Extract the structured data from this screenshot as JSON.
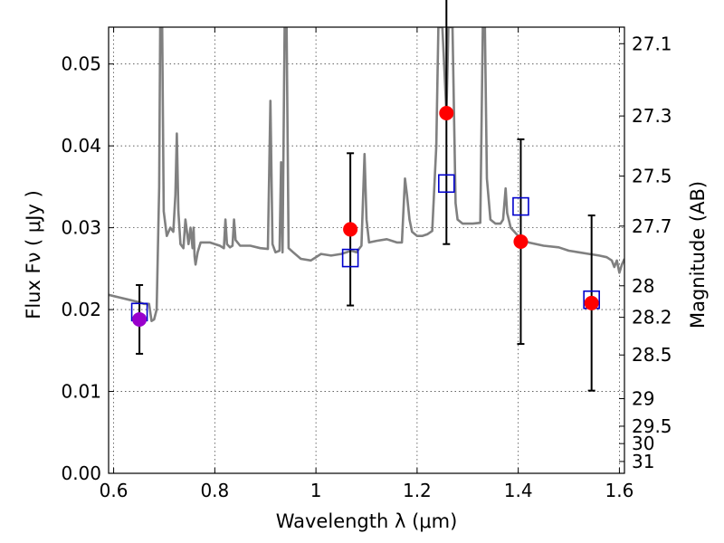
{
  "chart_data": {
    "type": "line",
    "xlabel": "Wavelength  λ (μm)",
    "ylabel": "Flux  Fν  ( μJy )",
    "y2label": "Magnitude (AB)",
    "xlim": [
      0.59,
      1.61
    ],
    "ylim": [
      0.0,
      0.0545
    ],
    "grid": true,
    "x_ticks": [
      {
        "value": 0.6,
        "label": "0.6"
      },
      {
        "value": 0.8,
        "label": "0.8"
      },
      {
        "value": 1.0,
        "label": "1"
      },
      {
        "value": 1.2,
        "label": "1.2"
      },
      {
        "value": 1.4,
        "label": "1.4"
      },
      {
        "value": 1.6,
        "label": "1.6"
      }
    ],
    "y_ticks": [
      {
        "value": 0.0,
        "label": "0.00"
      },
      {
        "value": 0.01,
        "label": "0.01"
      },
      {
        "value": 0.02,
        "label": "0.02"
      },
      {
        "value": 0.03,
        "label": "0.03"
      },
      {
        "value": 0.04,
        "label": "0.04"
      },
      {
        "value": 0.05,
        "label": "0.05"
      }
    ],
    "y2_ticks": [
      {
        "value": 27.1,
        "label": "27.1"
      },
      {
        "value": 27.3,
        "label": "27.3"
      },
      {
        "value": 27.5,
        "label": "27.5"
      },
      {
        "value": 27.7,
        "label": "27.7"
      },
      {
        "value": 28.0,
        "label": "28"
      },
      {
        "value": 28.2,
        "label": "28.2"
      },
      {
        "value": 28.5,
        "label": "28.5"
      },
      {
        "value": 29.0,
        "label": "29"
      },
      {
        "value": 29.5,
        "label": "29.5"
      },
      {
        "value": 30.0,
        "label": "30"
      },
      {
        "value": 31.0,
        "label": "31"
      }
    ],
    "spectrum": {
      "color": "#808080",
      "points": [
        [
          0.59,
          0.0218
        ],
        [
          0.61,
          0.0215
        ],
        [
          0.63,
          0.0212
        ],
        [
          0.65,
          0.0209
        ],
        [
          0.66,
          0.0207
        ],
        [
          0.67,
          0.0207
        ],
        [
          0.675,
          0.0186
        ],
        [
          0.68,
          0.0188
        ],
        [
          0.685,
          0.02
        ],
        [
          0.69,
          0.035
        ],
        [
          0.692,
          0.0545
        ],
        [
          0.696,
          0.0545
        ],
        [
          0.699,
          0.032
        ],
        [
          0.705,
          0.029
        ],
        [
          0.712,
          0.03
        ],
        [
          0.718,
          0.0295
        ],
        [
          0.722,
          0.034
        ],
        [
          0.725,
          0.0415
        ],
        [
          0.728,
          0.032
        ],
        [
          0.732,
          0.028
        ],
        [
          0.738,
          0.0275
        ],
        [
          0.742,
          0.031
        ],
        [
          0.745,
          0.0295
        ],
        [
          0.748,
          0.028
        ],
        [
          0.752,
          0.03
        ],
        [
          0.756,
          0.0275
        ],
        [
          0.758,
          0.03
        ],
        [
          0.76,
          0.0265
        ],
        [
          0.762,
          0.0255
        ],
        [
          0.766,
          0.027
        ],
        [
          0.772,
          0.0282
        ],
        [
          0.79,
          0.0282
        ],
        [
          0.81,
          0.0278
        ],
        [
          0.818,
          0.0275
        ],
        [
          0.821,
          0.031
        ],
        [
          0.824,
          0.028
        ],
        [
          0.83,
          0.0276
        ],
        [
          0.835,
          0.0278
        ],
        [
          0.838,
          0.031
        ],
        [
          0.841,
          0.0285
        ],
        [
          0.85,
          0.0278
        ],
        [
          0.87,
          0.0278
        ],
        [
          0.89,
          0.0275
        ],
        [
          0.905,
          0.0274
        ],
        [
          0.91,
          0.0455
        ],
        [
          0.914,
          0.028
        ],
        [
          0.92,
          0.027
        ],
        [
          0.928,
          0.0272
        ],
        [
          0.931,
          0.038
        ],
        [
          0.934,
          0.027
        ],
        [
          0.938,
          0.0545
        ],
        [
          0.942,
          0.0545
        ],
        [
          0.946,
          0.0275
        ],
        [
          0.955,
          0.027
        ],
        [
          0.97,
          0.0262
        ],
        [
          0.99,
          0.026
        ],
        [
          1.01,
          0.0268
        ],
        [
          1.03,
          0.0266
        ],
        [
          1.05,
          0.0268
        ],
        [
          1.07,
          0.0272
        ],
        [
          1.08,
          0.027
        ],
        [
          1.09,
          0.0278
        ],
        [
          1.096,
          0.039
        ],
        [
          1.1,
          0.031
        ],
        [
          1.105,
          0.0282
        ],
        [
          1.12,
          0.0284
        ],
        [
          1.14,
          0.0286
        ],
        [
          1.16,
          0.0282
        ],
        [
          1.17,
          0.0282
        ],
        [
          1.176,
          0.036
        ],
        [
          1.18,
          0.034
        ],
        [
          1.185,
          0.031
        ],
        [
          1.19,
          0.0295
        ],
        [
          1.2,
          0.029
        ],
        [
          1.21,
          0.029
        ],
        [
          1.22,
          0.0292
        ],
        [
          1.23,
          0.0296
        ],
        [
          1.238,
          0.04
        ],
        [
          1.242,
          0.0545
        ],
        [
          1.25,
          0.0545
        ],
        [
          1.258,
          0.044
        ],
        [
          1.262,
          0.0545
        ],
        [
          1.27,
          0.0545
        ],
        [
          1.276,
          0.033
        ],
        [
          1.28,
          0.031
        ],
        [
          1.29,
          0.0305
        ],
        [
          1.31,
          0.0305
        ],
        [
          1.325,
          0.0306
        ],
        [
          1.33,
          0.0545
        ],
        [
          1.334,
          0.0545
        ],
        [
          1.338,
          0.036
        ],
        [
          1.345,
          0.031
        ],
        [
          1.355,
          0.0305
        ],
        [
          1.365,
          0.0305
        ],
        [
          1.37,
          0.031
        ],
        [
          1.375,
          0.0348
        ],
        [
          1.378,
          0.0318
        ],
        [
          1.385,
          0.03
        ],
        [
          1.4,
          0.029
        ],
        [
          1.42,
          0.0282
        ],
        [
          1.45,
          0.0278
        ],
        [
          1.48,
          0.0276
        ],
        [
          1.5,
          0.0272
        ],
        [
          1.52,
          0.027
        ],
        [
          1.54,
          0.0268
        ],
        [
          1.56,
          0.0266
        ],
        [
          1.575,
          0.0264
        ],
        [
          1.585,
          0.026
        ],
        [
          1.59,
          0.0252
        ],
        [
          1.595,
          0.026
        ],
        [
          1.6,
          0.0245
        ],
        [
          1.605,
          0.0255
        ],
        [
          1.61,
          0.0262
        ]
      ]
    },
    "measurements": [
      {
        "x": 0.651,
        "y": 0.0188,
        "err": 0.0042,
        "color": "#9900cc"
      },
      {
        "x": 1.068,
        "y": 0.0298,
        "err": 0.0093,
        "color": "#ff0000"
      },
      {
        "x": 1.258,
        "y": 0.044,
        "err": 0.016,
        "color": "#ff0000"
      },
      {
        "x": 1.405,
        "y": 0.0283,
        "err": 0.0125,
        "color": "#ff0000"
      },
      {
        "x": 1.545,
        "y": 0.0208,
        "err": 0.0107,
        "color": "#ff0000"
      }
    ],
    "model_points": {
      "color": "#0000cc",
      "points": [
        [
          0.651,
          0.0197
        ],
        [
          1.068,
          0.0263
        ],
        [
          1.258,
          0.0354
        ],
        [
          1.405,
          0.0326
        ],
        [
          1.545,
          0.0212
        ]
      ]
    }
  }
}
